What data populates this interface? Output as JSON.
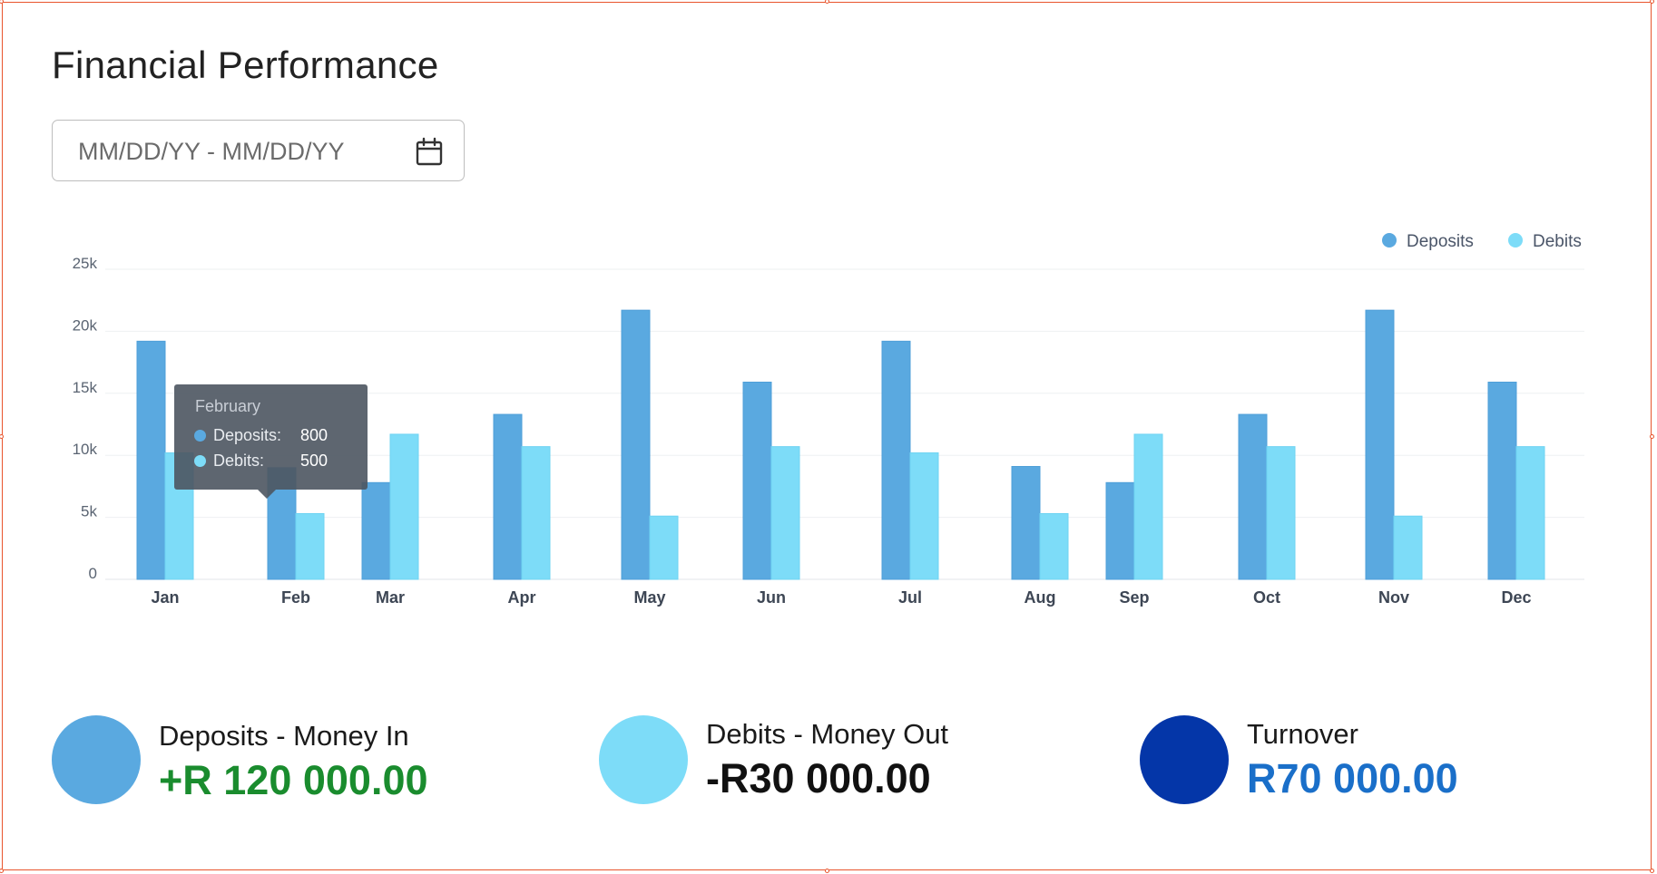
{
  "title": "Financial Performance",
  "date_range": {
    "placeholder": "MM/DD/YY - MM/DD/YY"
  },
  "colors": {
    "deposits": "#5aa9e0",
    "debits": "#7ddcf8",
    "turnover": "#0436a8",
    "positive": "#1a8c2e",
    "negative": "#111111",
    "turnover_value": "#1a6fc9"
  },
  "chart_data": {
    "type": "bar",
    "categories": [
      "Jan",
      "Feb",
      "Mar",
      "Apr",
      "May",
      "Jun",
      "Jul",
      "Aug",
      "Sep",
      "Oct",
      "Nov",
      "Dec"
    ],
    "series": [
      {
        "name": "Deposits",
        "values": [
          19200,
          9000,
          7800,
          13300,
          21700,
          15900,
          19200,
          9100,
          7800,
          13300,
          21700,
          15900
        ]
      },
      {
        "name": "Debits",
        "values": [
          10200,
          5300,
          11700,
          10700,
          5100,
          10700,
          10200,
          5300,
          11700,
          10700,
          5100,
          10700
        ]
      }
    ],
    "y_ticks": [
      "0",
      "5k",
      "10k",
      "15k",
      "20k",
      "25k"
    ],
    "ylim": [
      0,
      25000
    ],
    "grid": true,
    "legend_position": "top-right",
    "tooltip": {
      "title": "February",
      "rows": [
        {
          "label": "Deposits:",
          "value": "800"
        },
        {
          "label": "Debits:",
          "value": "500"
        }
      ]
    }
  },
  "summary": [
    {
      "label": "Deposits - Money In",
      "value": "+R 120 000.00"
    },
    {
      "label": "Debits - Money Out",
      "value": "-R30 000.00"
    },
    {
      "label": "Turnover",
      "value": "R70 000.00"
    }
  ]
}
